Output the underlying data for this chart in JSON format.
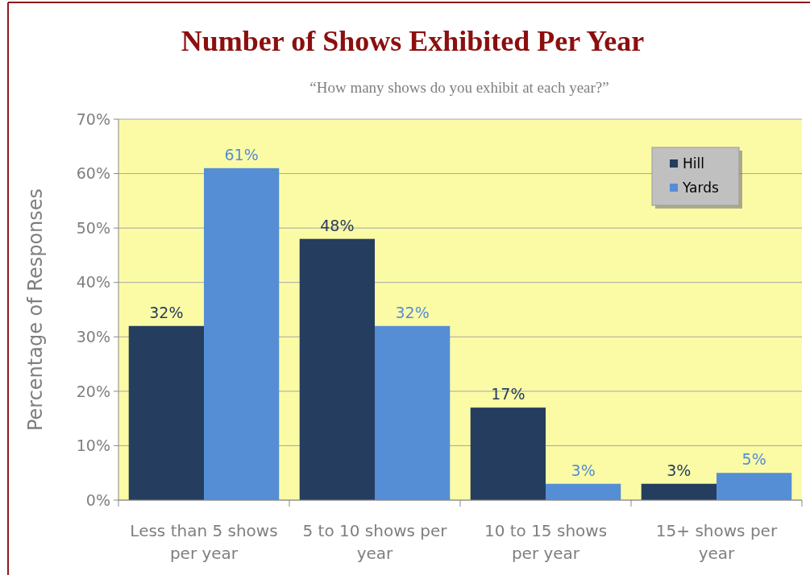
{
  "chart_data": {
    "type": "bar",
    "title": "Number of Shows Exhibited Per Year",
    "subtitle": "“How many shows do you exhibit at each year?”",
    "ylabel": "Percentage of Responses",
    "categories": [
      "Less than 5 shows per year",
      "5 to 10 shows per year",
      "10 to 15 shows per year",
      "15+ shows per year"
    ],
    "series": [
      {
        "name": "Hill",
        "color": "#253d5e",
        "values": [
          32,
          48,
          17,
          3
        ],
        "value_labels": [
          "32%",
          "48%",
          "17%",
          "3%"
        ]
      },
      {
        "name": "Yards",
        "color": "#558ed5",
        "values": [
          61,
          32,
          3,
          5
        ],
        "value_labels": [
          "61%",
          "32%",
          "3%",
          "5%"
        ]
      }
    ],
    "ylim": [
      0,
      70
    ],
    "yticks": [
      {
        "value": 0,
        "label": "0%"
      },
      {
        "value": 10,
        "label": "10%"
      },
      {
        "value": 20,
        "label": "20%"
      },
      {
        "value": 30,
        "label": "30%"
      },
      {
        "value": 40,
        "label": "40%"
      },
      {
        "value": 50,
        "label": "50%"
      },
      {
        "value": 60,
        "label": "60%"
      },
      {
        "value": 70,
        "label": "70%"
      }
    ],
    "grid": "y",
    "legend": "top right"
  }
}
